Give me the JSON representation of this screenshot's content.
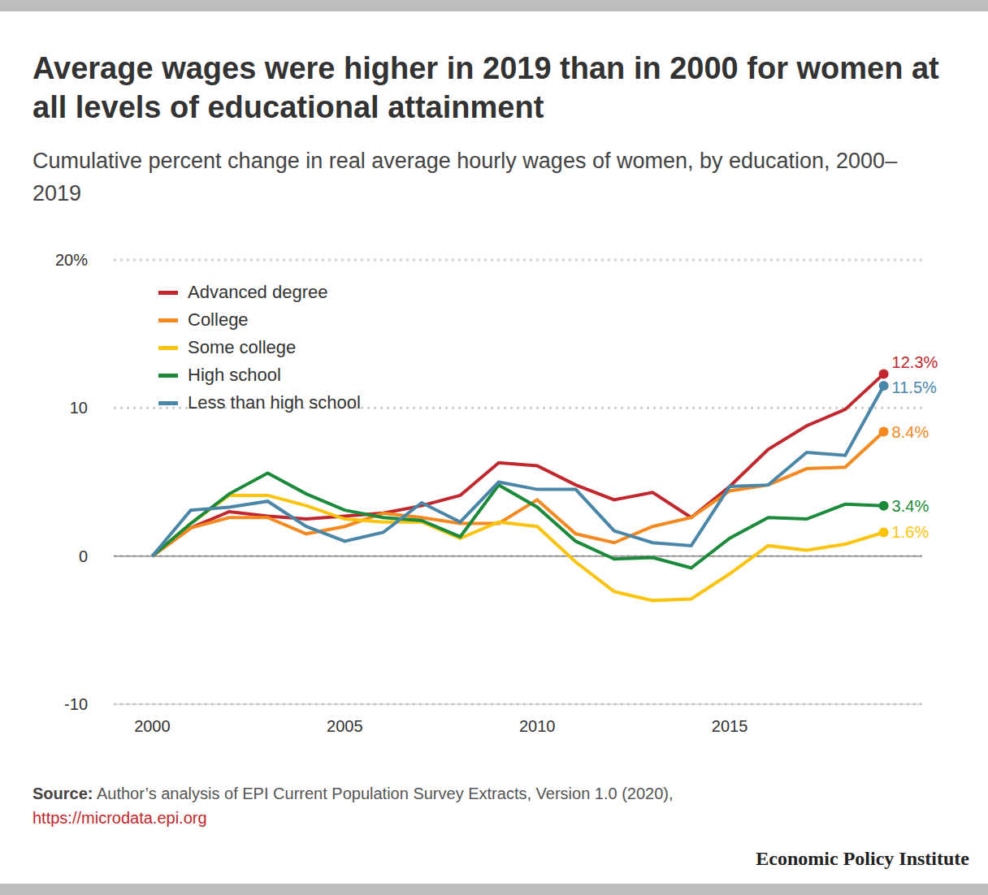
{
  "chart_data": {
    "type": "line",
    "title": "Average wages were higher in 2019 than in 2000 for women at all levels of educational attainment",
    "subtitle": "Cumulative percent change in real average hourly wages of women, by education, 2000–2019",
    "x": [
      2000,
      2001,
      2002,
      2003,
      2004,
      2005,
      2006,
      2007,
      2008,
      2009,
      2010,
      2011,
      2012,
      2013,
      2014,
      2015,
      2016,
      2017,
      2018,
      2019
    ],
    "xlim": [
      1999,
      2020
    ],
    "xticks": [
      2000,
      2005,
      2010,
      2015
    ],
    "ylim": [
      -10,
      20
    ],
    "yticks": [
      -10,
      0,
      10,
      {
        "value": 20,
        "label": "20%"
      }
    ],
    "grid": true,
    "legend": "upper left",
    "series": [
      {
        "name": "Advanced degree",
        "color": "#c1272d",
        "values": [
          0,
          1.9,
          3.0,
          2.7,
          2.5,
          2.7,
          2.9,
          3.4,
          4.1,
          6.3,
          6.1,
          4.8,
          3.8,
          4.3,
          2.6,
          4.7,
          7.2,
          8.8,
          9.9,
          12.3
        ],
        "value_labels": [
          null,
          null,
          null,
          null,
          null,
          null,
          null,
          null,
          null,
          null,
          null,
          null,
          null,
          null,
          null,
          null,
          null,
          null,
          null,
          "12.3%"
        ]
      },
      {
        "name": "College",
        "color": "#f5891f",
        "values": [
          0,
          1.9,
          2.6,
          2.6,
          1.5,
          2.0,
          2.9,
          2.6,
          2.2,
          2.2,
          3.8,
          1.5,
          0.9,
          2.0,
          2.6,
          4.4,
          4.8,
          5.9,
          6.0,
          8.4
        ],
        "value_labels": [
          null,
          null,
          null,
          null,
          null,
          null,
          null,
          null,
          null,
          null,
          null,
          null,
          null,
          null,
          null,
          null,
          null,
          null,
          null,
          "8.4%"
        ]
      },
      {
        "name": "Some college",
        "color": "#fcc30b",
        "values": [
          0,
          2.2,
          4.1,
          4.1,
          3.4,
          2.5,
          2.3,
          2.3,
          1.2,
          2.3,
          2.0,
          -0.4,
          -2.4,
          -3.0,
          -2.9,
          -1.2,
          0.7,
          0.4,
          0.8,
          1.6
        ],
        "value_labels": [
          null,
          null,
          null,
          null,
          null,
          null,
          null,
          null,
          null,
          null,
          null,
          null,
          null,
          null,
          null,
          null,
          null,
          null,
          null,
          "1.6%"
        ]
      },
      {
        "name": "High school",
        "color": "#1b8a3a",
        "values": [
          0,
          2.2,
          4.2,
          5.6,
          4.2,
          3.1,
          2.6,
          2.4,
          1.3,
          4.8,
          3.3,
          1.0,
          -0.2,
          -0.1,
          -0.8,
          1.2,
          2.6,
          2.5,
          3.5,
          3.4
        ],
        "value_labels": [
          null,
          null,
          null,
          null,
          null,
          null,
          null,
          null,
          null,
          null,
          null,
          null,
          null,
          null,
          null,
          null,
          null,
          null,
          null,
          "3.4%"
        ]
      },
      {
        "name": "Less than high school",
        "color": "#4a86a8",
        "values": [
          0,
          3.1,
          3.3,
          3.7,
          2.0,
          1.0,
          1.6,
          3.6,
          2.3,
          5.0,
          4.5,
          4.5,
          1.7,
          0.9,
          0.7,
          4.7,
          4.8,
          7.0,
          6.8,
          11.5
        ],
        "value_labels": [
          null,
          null,
          null,
          null,
          null,
          null,
          null,
          null,
          null,
          null,
          null,
          null,
          null,
          null,
          null,
          null,
          null,
          null,
          null,
          "11.5%"
        ]
      }
    ],
    "source_label": "Source:",
    "source": "Author’s analysis of EPI Current Population Survey Extracts, Version 1.0 (2020),",
    "source_url": "https://microdata.epi.org",
    "credit": "Economic Policy Institute"
  }
}
